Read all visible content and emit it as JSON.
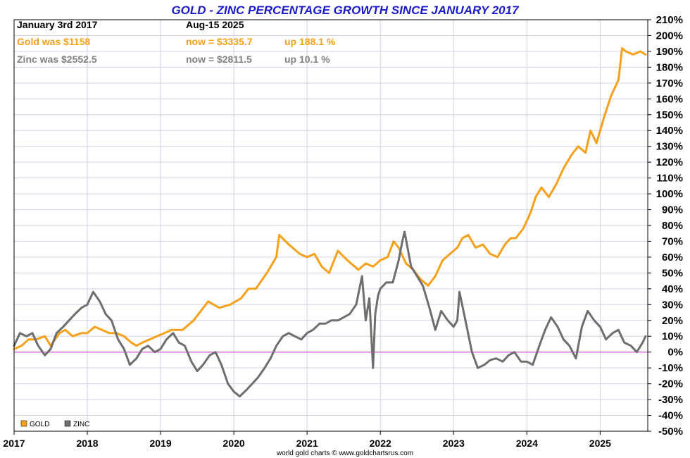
{
  "chart_data": {
    "type": "line",
    "title": "GOLD - ZINC PERCENTAGE GROWTH SINCE JANUARY 2017",
    "header": {
      "start_label": "January 3rd 2017",
      "end_label": "Aug-15  2025",
      "gold_was": "Gold was $1158",
      "gold_now": "now = $3335.7",
      "gold_up": "up 188.1 %",
      "zinc_was": "Zinc was $2552.5",
      "zinc_now": "now = $2811.5",
      "zinc_up": "up 10.1 %"
    },
    "x_ticks": [
      "2017",
      "2018",
      "2019",
      "2020",
      "2021",
      "2022",
      "2023",
      "2024",
      "2025"
    ],
    "x_tick_values": [
      2017,
      2018,
      2019,
      2020,
      2021,
      2022,
      2023,
      2024,
      2025
    ],
    "xlim": [
      2017.0,
      2025.65
    ],
    "ylim": [
      -50,
      210
    ],
    "y_ticks": [
      "-50%",
      "-40%",
      "-30%",
      "-20%",
      "-10%",
      "0%",
      "10%",
      "20%",
      "30%",
      "40%",
      "50%",
      "60%",
      "70%",
      "80%",
      "90%",
      "100%",
      "110%",
      "120%",
      "130%",
      "140%",
      "150%",
      "160%",
      "170%",
      "180%",
      "190%",
      "200%",
      "210%"
    ],
    "y_tick_values": [
      -50,
      -40,
      -30,
      -20,
      -10,
      0,
      10,
      20,
      30,
      40,
      50,
      60,
      70,
      80,
      90,
      100,
      110,
      120,
      130,
      140,
      150,
      160,
      170,
      180,
      190,
      200,
      210
    ],
    "grid": true,
    "legend_position": "bottom-left",
    "source": "world gold charts © www.goldchartsrus.com",
    "colors": {
      "gold": "#f7a11a",
      "zinc": "#6e6e6e",
      "zero_line": "#cc33cc",
      "grid": "#d2d2e6",
      "title": "#1a1acc"
    },
    "series": [
      {
        "name": "GOLD",
        "color": "#f7a11a",
        "x": [
          2017.0,
          2017.1,
          2017.2,
          2017.3,
          2017.42,
          2017.5,
          2017.62,
          2017.7,
          2017.8,
          2017.92,
          2018.0,
          2018.1,
          2018.2,
          2018.3,
          2018.4,
          2018.5,
          2018.6,
          2018.67,
          2018.75,
          2018.85,
          2018.95,
          2019.05,
          2019.15,
          2019.3,
          2019.45,
          2019.55,
          2019.65,
          2019.8,
          2019.95,
          2020.1,
          2020.2,
          2020.3,
          2020.45,
          2020.58,
          2020.62,
          2020.75,
          2020.9,
          2021.0,
          2021.1,
          2021.2,
          2021.3,
          2021.42,
          2021.55,
          2021.7,
          2021.8,
          2021.9,
          2022.0,
          2022.1,
          2022.18,
          2022.25,
          2022.35,
          2022.45,
          2022.55,
          2022.65,
          2022.75,
          2022.85,
          2022.95,
          2023.05,
          2023.12,
          2023.2,
          2023.3,
          2023.4,
          2023.5,
          2023.6,
          2023.7,
          2023.78,
          2023.85,
          2023.95,
          2024.05,
          2024.12,
          2024.2,
          2024.3,
          2024.4,
          2024.5,
          2024.6,
          2024.7,
          2024.8,
          2024.87,
          2024.95,
          2025.05,
          2025.15,
          2025.25,
          2025.3,
          2025.35,
          2025.45,
          2025.55,
          2025.62
        ],
        "values": [
          2,
          4,
          8,
          8,
          10,
          4,
          12,
          14,
          10,
          12,
          12,
          16,
          14,
          12,
          12,
          10,
          6,
          4,
          6,
          8,
          10,
          12,
          14,
          14,
          20,
          26,
          32,
          28,
          30,
          34,
          40,
          40,
          50,
          60,
          74,
          68,
          62,
          60,
          62,
          54,
          50,
          64,
          58,
          52,
          56,
          54,
          58,
          60,
          70,
          66,
          56,
          52,
          46,
          42,
          48,
          58,
          62,
          66,
          72,
          74,
          66,
          68,
          62,
          60,
          68,
          72,
          72,
          78,
          88,
          98,
          104,
          98,
          106,
          116,
          124,
          130,
          126,
          140,
          132,
          148,
          162,
          172,
          192,
          190,
          188,
          190,
          188
        ]
      },
      {
        "name": "ZINC",
        "color": "#6e6e6e",
        "x": [
          2017.0,
          2017.08,
          2017.17,
          2017.25,
          2017.33,
          2017.42,
          2017.5,
          2017.58,
          2017.67,
          2017.75,
          2017.83,
          2017.92,
          2018.0,
          2018.08,
          2018.17,
          2018.25,
          2018.33,
          2018.42,
          2018.5,
          2018.58,
          2018.67,
          2018.75,
          2018.83,
          2018.92,
          2019.0,
          2019.08,
          2019.17,
          2019.25,
          2019.33,
          2019.42,
          2019.5,
          2019.58,
          2019.67,
          2019.75,
          2019.83,
          2019.92,
          2020.0,
          2020.08,
          2020.17,
          2020.25,
          2020.33,
          2020.42,
          2020.5,
          2020.58,
          2020.67,
          2020.75,
          2020.83,
          2020.92,
          2021.0,
          2021.08,
          2021.17,
          2021.25,
          2021.33,
          2021.42,
          2021.5,
          2021.58,
          2021.67,
          2021.75,
          2021.8,
          2021.85,
          2021.9,
          2021.93,
          2021.97,
          2022.0,
          2022.08,
          2022.17,
          2022.25,
          2022.3,
          2022.33,
          2022.42,
          2022.5,
          2022.58,
          2022.67,
          2022.75,
          2022.83,
          2022.92,
          2023.0,
          2023.05,
          2023.08,
          2023.17,
          2023.25,
          2023.33,
          2023.42,
          2023.5,
          2023.58,
          2023.67,
          2023.75,
          2023.83,
          2023.92,
          2024.0,
          2024.08,
          2024.17,
          2024.25,
          2024.33,
          2024.42,
          2024.5,
          2024.58,
          2024.67,
          2024.75,
          2024.83,
          2024.92,
          2025.0,
          2025.08,
          2025.17,
          2025.25,
          2025.33,
          2025.42,
          2025.5,
          2025.58,
          2025.62
        ],
        "values": [
          4,
          12,
          10,
          12,
          4,
          -2,
          2,
          12,
          16,
          20,
          24,
          28,
          30,
          38,
          32,
          24,
          20,
          8,
          2,
          -8,
          -4,
          2,
          4,
          0,
          2,
          8,
          12,
          6,
          4,
          -6,
          -12,
          -8,
          -2,
          0,
          -8,
          -20,
          -25,
          -28,
          -24,
          -20,
          -16,
          -10,
          -4,
          4,
          10,
          12,
          10,
          8,
          12,
          14,
          18,
          18,
          20,
          20,
          22,
          24,
          30,
          48,
          20,
          34,
          -10,
          24,
          36,
          40,
          44,
          44,
          58,
          70,
          76,
          54,
          48,
          42,
          28,
          14,
          26,
          20,
          16,
          20,
          38,
          18,
          0,
          -10,
          -8,
          -5,
          -4,
          -6,
          -2,
          0,
          -6,
          -6,
          -8,
          4,
          14,
          22,
          16,
          8,
          4,
          -4,
          16,
          26,
          20,
          16,
          8,
          12,
          14,
          6,
          4,
          0,
          6,
          10
        ]
      }
    ]
  }
}
